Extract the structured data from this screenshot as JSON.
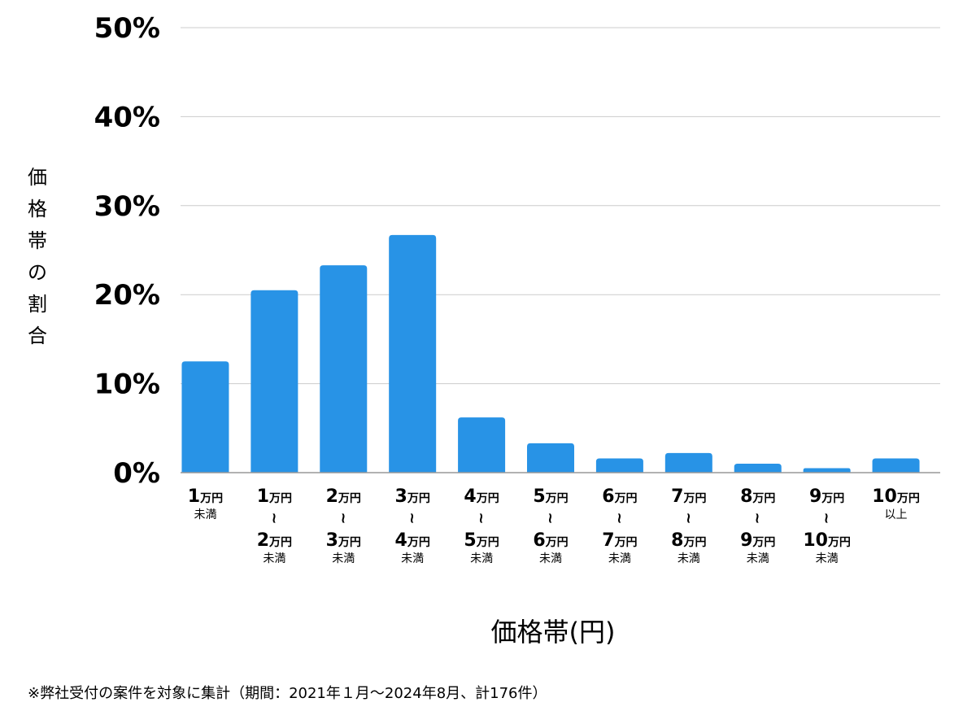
{
  "chart_data": {
    "type": "bar",
    "ylabel": "価格帯の割合",
    "xlabel": "価格帯(円)",
    "ylim": [
      0,
      50
    ],
    "yticks": [
      "0%",
      "10%",
      "20%",
      "30%",
      "40%",
      "50%"
    ],
    "grid": true,
    "bar_color": "#2893E6",
    "categories": [
      {
        "top": "1",
        "top_unit": "万円",
        "mid": "未満",
        "bottom": "",
        "bottom_unit": "",
        "suffix": ""
      },
      {
        "top": "1",
        "top_unit": "万円",
        "mid": "~",
        "bottom": "2",
        "bottom_unit": "万円",
        "suffix": "未満"
      },
      {
        "top": "2",
        "top_unit": "万円",
        "mid": "~",
        "bottom": "3",
        "bottom_unit": "万円",
        "suffix": "未満"
      },
      {
        "top": "3",
        "top_unit": "万円",
        "mid": "~",
        "bottom": "4",
        "bottom_unit": "万円",
        "suffix": "未満"
      },
      {
        "top": "4",
        "top_unit": "万円",
        "mid": "~",
        "bottom": "5",
        "bottom_unit": "万円",
        "suffix": "未満"
      },
      {
        "top": "5",
        "top_unit": "万円",
        "mid": "~",
        "bottom": "6",
        "bottom_unit": "万円",
        "suffix": "未満"
      },
      {
        "top": "6",
        "top_unit": "万円",
        "mid": "~",
        "bottom": "7",
        "bottom_unit": "万円",
        "suffix": "未満"
      },
      {
        "top": "7",
        "top_unit": "万円",
        "mid": "~",
        "bottom": "8",
        "bottom_unit": "万円",
        "suffix": "未満"
      },
      {
        "top": "8",
        "top_unit": "万円",
        "mid": "~",
        "bottom": "9",
        "bottom_unit": "万円",
        "suffix": "未満"
      },
      {
        "top": "9",
        "top_unit": "万円",
        "mid": "~",
        "bottom": "10",
        "bottom_unit": "万円",
        "suffix": "未満"
      },
      {
        "top": "10",
        "top_unit": "万円",
        "mid": "以上",
        "bottom": "",
        "bottom_unit": "",
        "suffix": ""
      }
    ],
    "values": [
      12.5,
      20.5,
      23.3,
      26.7,
      6.2,
      3.3,
      1.6,
      2.2,
      1.0,
      0.5,
      1.6
    ]
  },
  "footnote": "※弊社受付の案件を対象に集計（期間：2021年１月～2024年8月、計176件）"
}
